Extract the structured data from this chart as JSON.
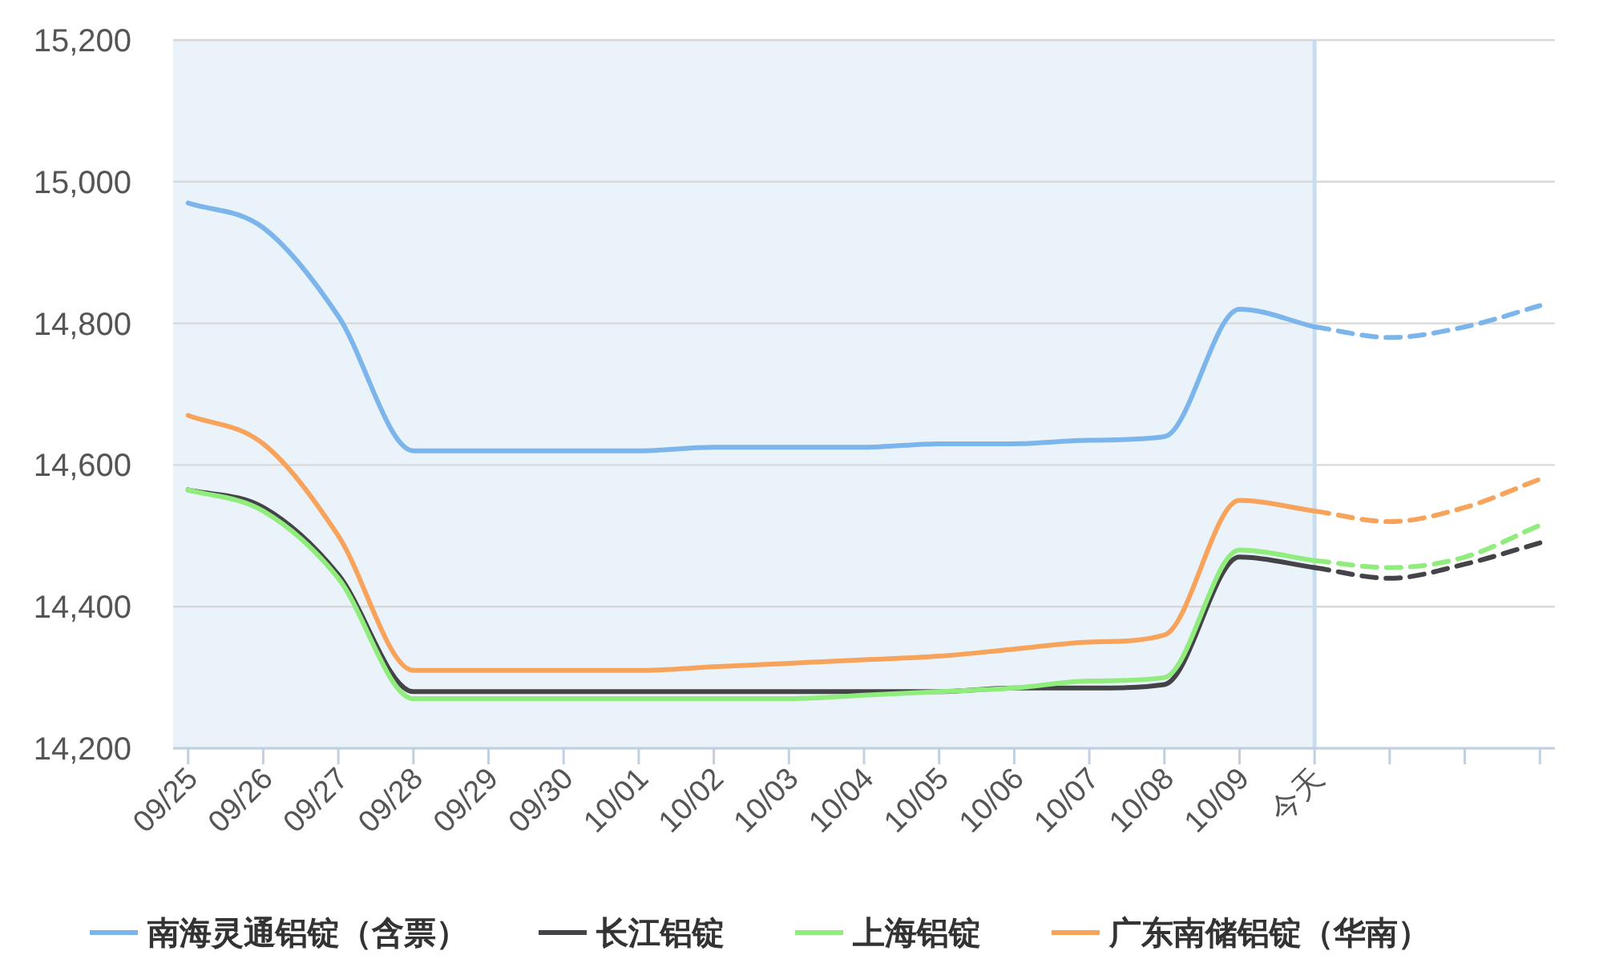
{
  "chart_data": {
    "type": "line",
    "categories": [
      "09/25",
      "09/26",
      "09/27",
      "09/28",
      "09/29",
      "09/30",
      "10/01",
      "10/02",
      "10/03",
      "10/04",
      "10/05",
      "10/06",
      "10/07",
      "10/08",
      "10/09",
      "今天",
      null,
      null,
      null
    ],
    "ylim": [
      14200,
      15200
    ],
    "yticks": [
      {
        "value": 14200,
        "label": "14,200"
      },
      {
        "value": 14400,
        "label": "14,400"
      },
      {
        "value": 14600,
        "label": "14,600"
      },
      {
        "value": 14800,
        "label": "14,800"
      },
      {
        "value": 15000,
        "label": "15,000"
      },
      {
        "value": 15200,
        "label": "15,200"
      }
    ],
    "grid": "y",
    "legend": "bottom",
    "bands": [
      {
        "axis": "x",
        "from": "09/25",
        "to": "今天",
        "color": "#eaf3fa"
      }
    ],
    "ref_lines": [
      {
        "axis": "x",
        "value": "今天",
        "color": "#c8ddef"
      }
    ],
    "series": [
      {
        "name": "南海灵通铝锭（含票）",
        "color": "#7cb5ec",
        "line_style": "solid",
        "values": [
          14970,
          14935,
          14810,
          14620,
          14620,
          14620,
          14620,
          14625,
          14625,
          14625,
          14630,
          14630,
          14635,
          14640,
          14820,
          14795,
          null,
          null,
          null
        ]
      },
      {
        "name": "长江铝锭",
        "color": "#434348",
        "line_style": "solid",
        "values": [
          14565,
          14540,
          14445,
          14280,
          14280,
          14280,
          14280,
          14280,
          14280,
          14280,
          14280,
          14285,
          14285,
          14290,
          14470,
          14455,
          null,
          null,
          null
        ]
      },
      {
        "name": "上海铝锭",
        "color": "#90ed7d",
        "line_style": "solid",
        "values": [
          14565,
          14535,
          14440,
          14270,
          14270,
          14270,
          14270,
          14270,
          14270,
          14275,
          14280,
          14285,
          14295,
          14300,
          14480,
          14465,
          null,
          null,
          null
        ]
      },
      {
        "name": "广东南储铝锭（华南）",
        "color": "#f7a35c",
        "line_style": "solid",
        "values": [
          14670,
          14630,
          14500,
          14310,
          14310,
          14310,
          14310,
          14315,
          14320,
          14325,
          14330,
          14340,
          14350,
          14360,
          14550,
          14535,
          null,
          null,
          null
        ]
      },
      {
        "color": "#7cb5ec",
        "line_style": "dashed",
        "values": [
          null,
          null,
          null,
          null,
          null,
          null,
          null,
          null,
          null,
          null,
          null,
          null,
          null,
          null,
          null,
          14795,
          14780,
          14795,
          14825
        ]
      },
      {
        "color": "#434348",
        "line_style": "dashed",
        "values": [
          null,
          null,
          null,
          null,
          null,
          null,
          null,
          null,
          null,
          null,
          null,
          null,
          null,
          null,
          null,
          14455,
          14440,
          14460,
          14490
        ]
      },
      {
        "color": "#90ed7d",
        "line_style": "dashed",
        "values": [
          null,
          null,
          null,
          null,
          null,
          null,
          null,
          null,
          null,
          null,
          null,
          null,
          null,
          null,
          null,
          14465,
          14455,
          14470,
          14515
        ]
      },
      {
        "color": "#f7a35c",
        "line_style": "dashed",
        "values": [
          null,
          null,
          null,
          null,
          null,
          null,
          null,
          null,
          null,
          null,
          null,
          null,
          null,
          null,
          null,
          14535,
          14520,
          14540,
          14580
        ]
      }
    ]
  }
}
